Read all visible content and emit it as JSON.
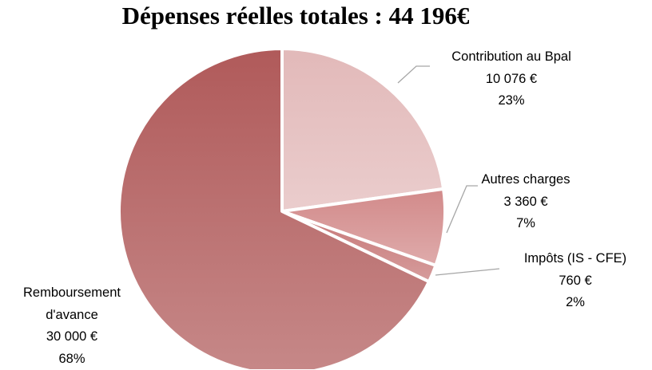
{
  "chart_data": {
    "type": "pie",
    "title": "Dépenses réelles totales : 44 196€",
    "categories": [
      "Contribution au Bpal",
      "Autres charges",
      "Impôts (IS - CFE)",
      "Remboursement d'avance"
    ],
    "values": [
      10076,
      3360,
      760,
      30000
    ],
    "value_labels": [
      "10 076 €",
      "3 360 €",
      "760 €",
      "30 000 €"
    ],
    "percent_labels": [
      "23%",
      "7%",
      "2%",
      "68%"
    ],
    "colors": [
      "#e2b9b9",
      "#d28a8a",
      "#c67676",
      "#b05a5a"
    ]
  }
}
